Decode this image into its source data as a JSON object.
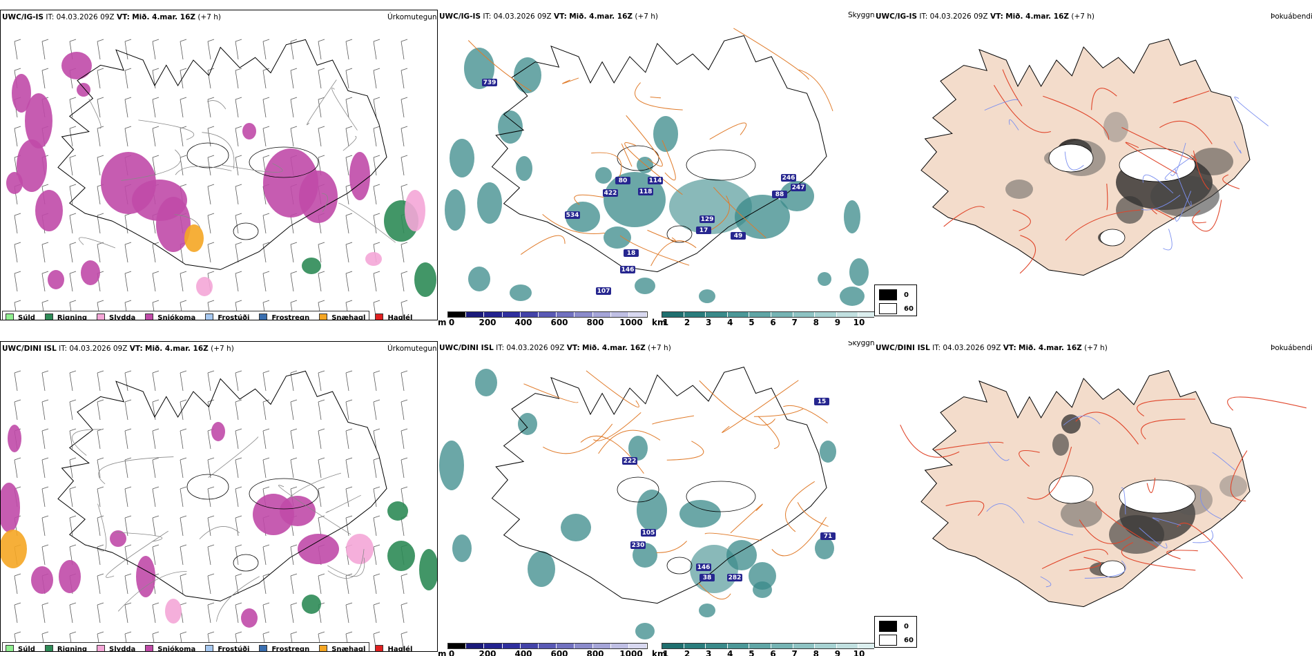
{
  "rows": [
    {
      "model": "UWC/IG-IS",
      "it_label": "IT:",
      "it_value": "04.03.2026 09Z",
      "vt_label": "VT:",
      "vt_value": "Mið. 4.mar. 16Z",
      "lead": "(+7 h)"
    },
    {
      "model": "UWC/DINI ISL",
      "it_label": "IT:",
      "it_value": "04.03.2026 09Z",
      "vt_label": "VT:",
      "vt_value": "Mið. 4.mar. 16Z",
      "lead": "(+7 h)"
    }
  ],
  "panel_titles": {
    "precip_type": "Úrkomutegund",
    "visibility": "Skyggni",
    "fog": "Þokuábendi"
  },
  "precip_legend": [
    {
      "label": "Súld",
      "color": "#90ee90"
    },
    {
      "label": "Rigning",
      "color": "#2e8b57"
    },
    {
      "label": "Slydda",
      "color": "#f4a6d7"
    },
    {
      "label": "Snjókoma",
      "color": "#c04aa8"
    },
    {
      "label": "Frostúði",
      "color": "#a6c8f0"
    },
    {
      "label": "Frostregn",
      "color": "#3a6fb0"
    },
    {
      "label": "Snæhagl",
      "color": "#f5a623"
    },
    {
      "label": "Haglél",
      "color": "#e02020"
    }
  ],
  "ceiling_colorbar": {
    "unit": "m",
    "ticks": [
      "0",
      "200",
      "400",
      "600",
      "800",
      "1000"
    ],
    "colors": [
      "#000000",
      "#1a1a7a",
      "#23238f",
      "#2f2f9e",
      "#4343a8",
      "#5a5ab5",
      "#7272c0",
      "#8b8bcb",
      "#a5a5d8",
      "#bfbfe4",
      "#d8d8f0"
    ]
  },
  "vis_colorbar": {
    "unit": "km",
    "ticks": [
      "1",
      "2",
      "3",
      "4",
      "5",
      "6",
      "7",
      "8",
      "9",
      "10"
    ],
    "colors": [
      "#1f6f6f",
      "#2a7d7d",
      "#3a8a8a",
      "#4c9898",
      "#60a6a6",
      "#76b4b4",
      "#8ec3c3",
      "#a7d2d2",
      "#c1e0e0",
      "#dcefef"
    ]
  },
  "fog_legend": [
    {
      "value": "0",
      "color": "#000000"
    },
    {
      "value": "60",
      "color": "#ffffff"
    }
  ],
  "ceiling_labels_top": [
    "739",
    "80",
    "422",
    "534",
    "114",
    "118",
    "246",
    "247",
    "88",
    "129",
    "17",
    "107",
    "146",
    "49",
    "18"
  ],
  "ceiling_labels_bottom": [
    "222",
    "105",
    "230",
    "146",
    "38",
    "282",
    "15",
    "71"
  ],
  "colors": {
    "coast": "#000000",
    "road": "#e07b2a",
    "land_fog": "#f3dccb",
    "road_fog": "#e0452a",
    "river": "#7b8ff0"
  }
}
